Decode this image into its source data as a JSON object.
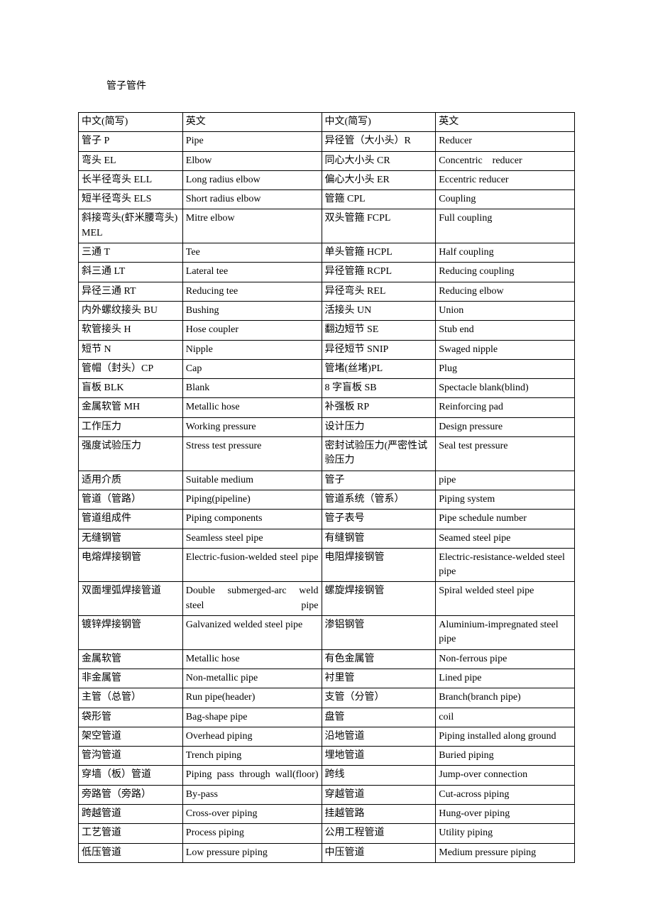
{
  "title": "管子管件",
  "columns": [
    "中文(简写)",
    "英文",
    "中文(简写)",
    "英文"
  ],
  "text_color": "#000000",
  "border_color": "#000000",
  "background_color": "#ffffff",
  "font_size_pt": 10.5,
  "column_widths_pct": [
    21,
    28,
    23,
    28
  ],
  "rows": [
    [
      "管子 P",
      "Pipe",
      "异径管（大小头）R",
      "Reducer"
    ],
    [
      "弯头 EL",
      "Elbow",
      "同心大小头 CR",
      "Concentric　reducer"
    ],
    [
      "长半径弯头 ELL",
      "Long radius elbow",
      "偏心大小头 ER",
      "Eccentric reducer"
    ],
    [
      "短半径弯头 ELS",
      "Short radius elbow",
      "管箍 CPL",
      "Coupling"
    ],
    [
      "斜接弯头(虾米腰弯头) MEL",
      "Mitre elbow",
      "双头管箍 FCPL",
      "Full coupling"
    ],
    [
      "三通 T",
      "Tee",
      "单头管箍 HCPL",
      "Half coupling"
    ],
    [
      "斜三通 LT",
      "Lateral tee",
      "异径管箍 RCPL",
      "Reducing coupling"
    ],
    [
      "异径三通 RT",
      "Reducing tee",
      "异径弯头 REL",
      "Reducing elbow"
    ],
    [
      "内外螺纹接头 BU",
      "Bushing",
      "活接头 UN",
      "Union"
    ],
    [
      "软管接头 H",
      "Hose coupler",
      "翻边短节 SE",
      "Stub end"
    ],
    [
      "短节 N",
      "Nipple",
      "异径短节 SNIP",
      "Swaged nipple"
    ],
    [
      "管帽（封头）CP",
      "Cap",
      "管堵(丝堵)PL",
      "Plug"
    ],
    [
      "盲板 BLK",
      "Blank",
      "8 字盲板 SB",
      "Spectacle blank(blind)"
    ],
    [
      "金属软管 MH",
      "Metallic hose",
      "补强板 RP",
      "Reinforcing pad"
    ],
    [
      "工作压力",
      "Working pressure",
      "设计压力",
      "Design pressure"
    ],
    [
      "强度试验压力",
      "Stress test pressure",
      "密封试验压力(严密性试验压力",
      "Seal test pressure"
    ],
    [
      "适用介质",
      "Suitable medium",
      "管子",
      "pipe"
    ],
    [
      "管道（管路）",
      "Piping(pipeline)",
      "管道系统（管系）",
      "Piping system"
    ],
    [
      "管道组成件",
      "Piping components",
      "管子表号",
      "Pipe schedule number"
    ],
    [
      "无缝钢管",
      "Seamless steel pipe",
      "有缝钢管",
      "Seamed steel pipe"
    ],
    [
      "电熔焊接钢管",
      "Electric-fusion-welded steel pipe",
      "电阻焊接钢管",
      "Electric-resistance-welded steel pipe"
    ],
    [
      "双面埋弧焊接管道",
      "Double submerged-arc weld steel pipe",
      "螺旋焊接钢管",
      "Spiral welded steel pipe"
    ],
    [
      "镀锌焊接钢管",
      "Galvanized welded steel pipe",
      "渗铝钢管",
      "Aluminium-impregnated steel pipe"
    ],
    [
      "金属软管",
      "Metallic hose",
      "有色金属管",
      "Non-ferrous pipe"
    ],
    [
      "非金属管",
      "Non-metallic pipe",
      "衬里管",
      "Lined pipe"
    ],
    [
      "主管（总管）",
      "Run pipe(header)",
      "支管（分管）",
      "Branch(branch pipe)"
    ],
    [
      "袋形管",
      "Bag-shape pipe",
      "盘管",
      "coil"
    ],
    [
      "架空管道",
      "Overhead piping",
      "沿地管道",
      "Piping installed along ground"
    ],
    [
      "管沟管道",
      "Trench piping",
      "埋地管道",
      "Buried piping"
    ],
    [
      "穿墙（板）管道",
      "Piping pass through wall(floor)",
      "跨线",
      "Jump-over connection"
    ],
    [
      "旁路管（旁路）",
      "By-pass",
      "穿越管道",
      "Cut-across piping"
    ],
    [
      "跨越管道",
      "Cross-over piping",
      "挂越管路",
      "Hung-over piping"
    ],
    [
      "工艺管道",
      "Process piping",
      "公用工程管道",
      "Utility piping"
    ],
    [
      "低压管道",
      "Low pressure piping",
      "中压管道",
      "Medium pressure piping"
    ]
  ],
  "justify_cells": [
    [
      20,
      1
    ],
    [
      21,
      1
    ],
    [
      29,
      1
    ]
  ]
}
